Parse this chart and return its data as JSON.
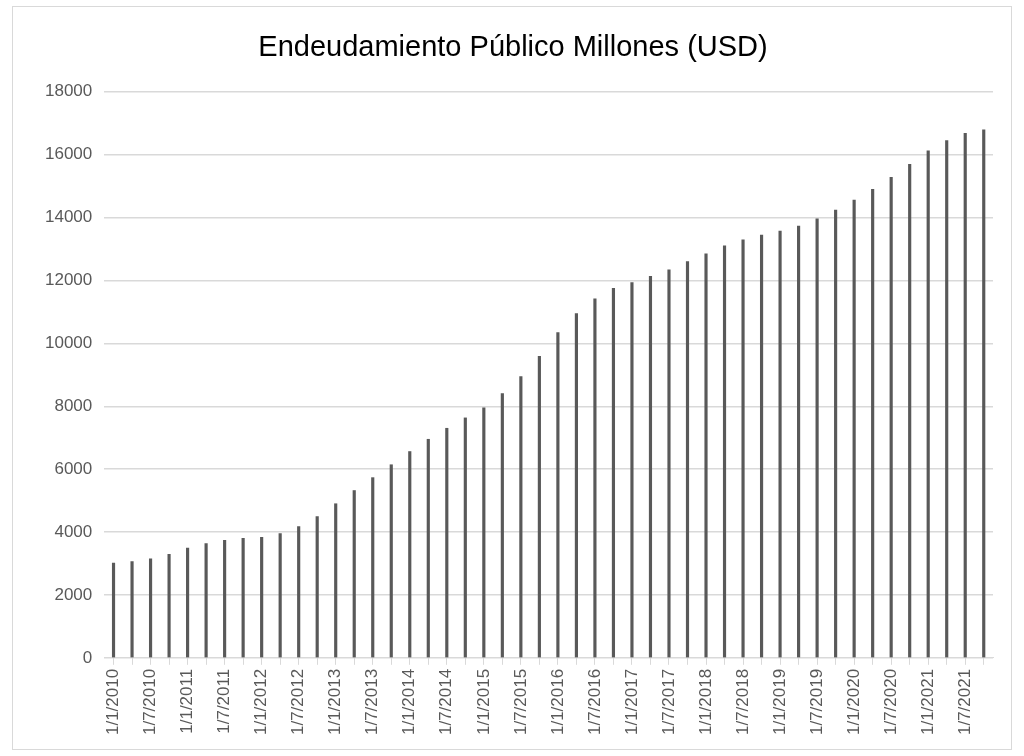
{
  "chart_data": {
    "type": "bar",
    "title": "Endeudamiento Público Millones (USD)",
    "categories": [
      "1/1/2010",
      null,
      "1/7/2010",
      null,
      "1/1/2011",
      null,
      "1/7/2011",
      null,
      "1/1/2012",
      null,
      "1/7/2012",
      null,
      "1/1/2013",
      null,
      "1/7/2013",
      null,
      "1/1/2014",
      null,
      "1/7/2014",
      null,
      "1/1/2015",
      null,
      "1/7/2015",
      null,
      "1/1/2016",
      null,
      "1/7/2016",
      null,
      "1/1/2017",
      null,
      "1/7/2017",
      null,
      "1/1/2018",
      null,
      "1/7/2018",
      null,
      "1/1/2019",
      null,
      "1/7/2019",
      null,
      "1/1/2020",
      null,
      "1/7/2020",
      null,
      "1/1/2021",
      null,
      "1/7/2021",
      null
    ],
    "values": [
      3010,
      3060,
      3150,
      3290,
      3490,
      3630,
      3740,
      3800,
      3830,
      3950,
      4170,
      4490,
      4900,
      5320,
      5730,
      6140,
      6560,
      6950,
      7300,
      7630,
      7950,
      8400,
      8940,
      9590,
      10340,
      10950,
      11420,
      11750,
      11930,
      12130,
      12340,
      12600,
      12850,
      13100,
      13290,
      13440,
      13570,
      13730,
      13960,
      14240,
      14560,
      14900,
      15280,
      15690,
      16120,
      16450,
      16680,
      16790
    ],
    "color": "#595959",
    "ylim": [
      0,
      18000
    ],
    "yticks": [
      0,
      2000,
      4000,
      6000,
      8000,
      10000,
      12000,
      14000,
      16000,
      18000
    ],
    "grid": "y",
    "legend": false
  }
}
